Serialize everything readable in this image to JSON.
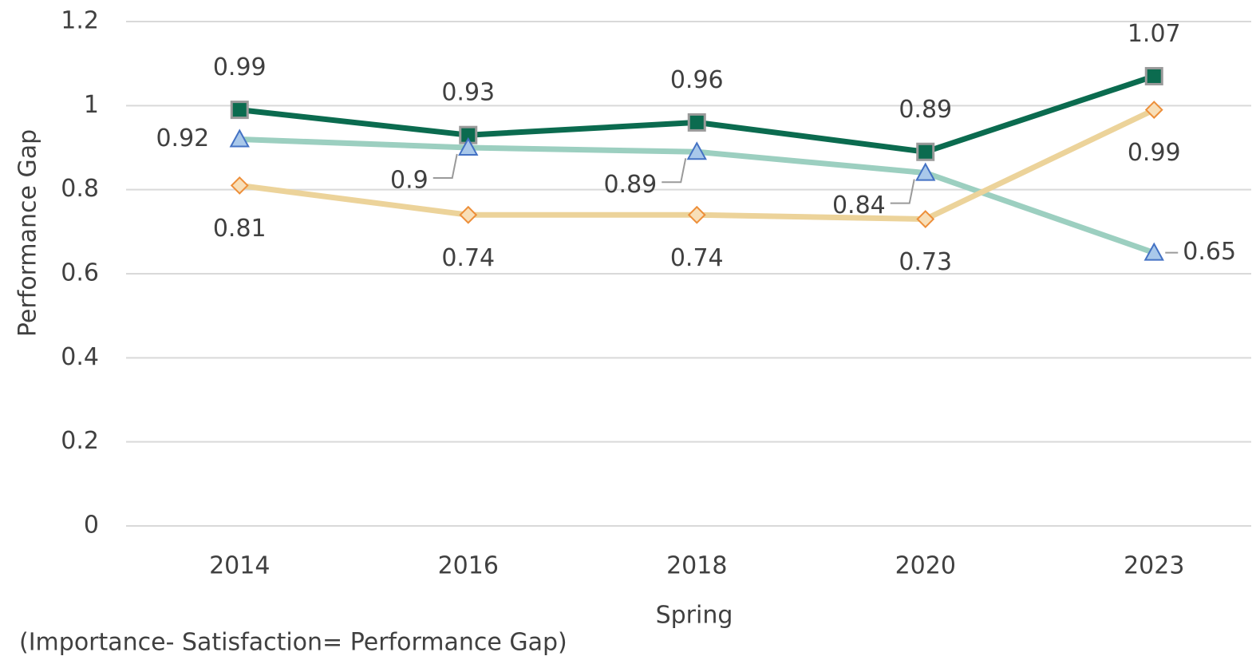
{
  "chart_data": {
    "type": "line",
    "x_label": "Spring",
    "y_label": "Performance Gap",
    "annotation": "(Importance- Satisfaction= Performance Gap)",
    "categories": [
      "2014",
      "2016",
      "2018",
      "2020",
      "2023"
    ],
    "series": [
      {
        "color": "#0b6b4f",
        "marker": "square",
        "values": [
          0.99,
          0.93,
          0.96,
          0.89,
          1.07
        ]
      },
      {
        "color": "#9ccfc0",
        "marker": "triangle",
        "values": [
          0.92,
          0.9,
          0.89,
          0.84,
          0.65
        ]
      },
      {
        "color": "#ecd39a",
        "marker": "diamond",
        "values": [
          0.81,
          0.74,
          0.74,
          0.73,
          0.99
        ]
      }
    ],
    "ylim": [
      0,
      1.2
    ],
    "yticks": [
      0,
      0.2,
      0.4,
      0.6,
      0.8,
      1,
      1.2
    ],
    "grid": true
  }
}
